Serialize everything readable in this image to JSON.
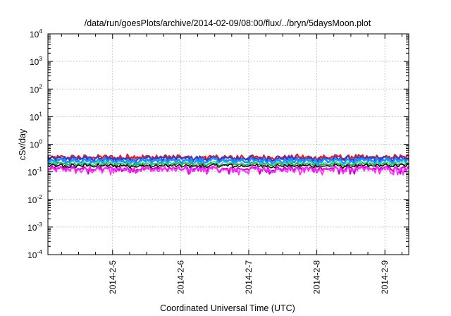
{
  "chart_data": {
    "type": "line",
    "title": "/data/run/goesPlots/archive/2014-02-09/08:00/flux/../bryn/5daysMoon.plot",
    "xlabel": "Coordinated Universal Time (UTC)",
    "ylabel": "cSv/day",
    "y_scale": "log",
    "ylim_exponents": [
      -4,
      4
    ],
    "yticks": [
      {
        "base": "10",
        "exp": "4"
      },
      {
        "base": "10",
        "exp": "3"
      },
      {
        "base": "10",
        "exp": "2"
      },
      {
        "base": "10",
        "exp": "1"
      },
      {
        "base": "10",
        "exp": "0"
      },
      {
        "base": "10",
        "exp": "-1"
      },
      {
        "base": "10",
        "exp": "-2"
      },
      {
        "base": "10",
        "exp": "-3"
      },
      {
        "base": "10",
        "exp": "-4"
      }
    ],
    "xlim_days": [
      4.05,
      9.35
    ],
    "xticks": [
      {
        "label": "2014-2-5",
        "day": 5
      },
      {
        "label": "2014-2-6",
        "day": 6
      },
      {
        "label": "2014-2-7",
        "day": 7
      },
      {
        "label": "2014-2-8",
        "day": 8
      },
      {
        "label": "2014-2-9",
        "day": 9
      }
    ],
    "grid": true,
    "series": [
      {
        "color": "#e8191c",
        "base": 0.34,
        "amp": 0.09,
        "width": 2.2
      },
      {
        "color": "#2a3fd8",
        "base": 0.3,
        "amp": 0.08,
        "width": 2.2
      },
      {
        "color": "#1e90ff",
        "base": 0.25,
        "amp": 0.07,
        "width": 2.6
      },
      {
        "color": "#30d8a8",
        "base": 0.205,
        "amp": 0.045,
        "width": 1.6
      },
      {
        "color": "#2aa02a",
        "base": 0.185,
        "amp": 0.035,
        "width": 1.4
      },
      {
        "color": "#000000",
        "base": 0.165,
        "amp": 0.03,
        "width": 1.4
      },
      {
        "color": "#d000d0",
        "base": 0.13,
        "amp": 0.035,
        "width": 2.2
      },
      {
        "color": "#ff30ff",
        "base": 0.12,
        "amp": 0.04,
        "width": 1.8
      }
    ]
  }
}
